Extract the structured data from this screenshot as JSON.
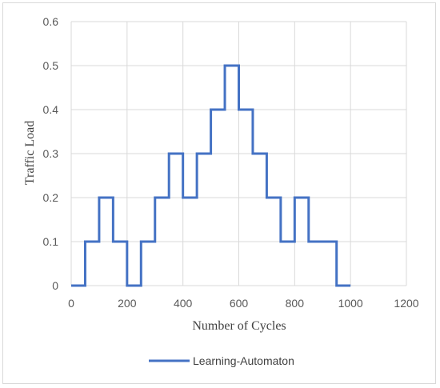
{
  "chart_data": {
    "type": "line",
    "step": true,
    "xlabel": "Number of Cycles",
    "ylabel": "Traffic Load",
    "xlim": [
      0,
      1200
    ],
    "ylim": [
      0,
      0.6
    ],
    "xticks": [
      "0",
      "200",
      "400",
      "600",
      "800",
      "1000",
      "1200"
    ],
    "yticks": [
      "0",
      "0.1",
      "0.2",
      "0.3",
      "0.4",
      "0.5",
      "0.6"
    ],
    "grid": true,
    "legend_position": "bottom",
    "series": [
      {
        "name": "Learning-Automaton",
        "color": "#4472c4",
        "x": [
          0,
          50,
          100,
          150,
          200,
          250,
          300,
          350,
          400,
          450,
          500,
          550,
          600,
          650,
          700,
          750,
          800,
          850,
          900,
          950,
          1000
        ],
        "values": [
          0,
          0.1,
          0.2,
          0.1,
          0,
          0.1,
          0.2,
          0.3,
          0.2,
          0.3,
          0.4,
          0.5,
          0.4,
          0.3,
          0.2,
          0.1,
          0.2,
          0.1,
          0.1,
          0,
          0
        ]
      }
    ]
  }
}
